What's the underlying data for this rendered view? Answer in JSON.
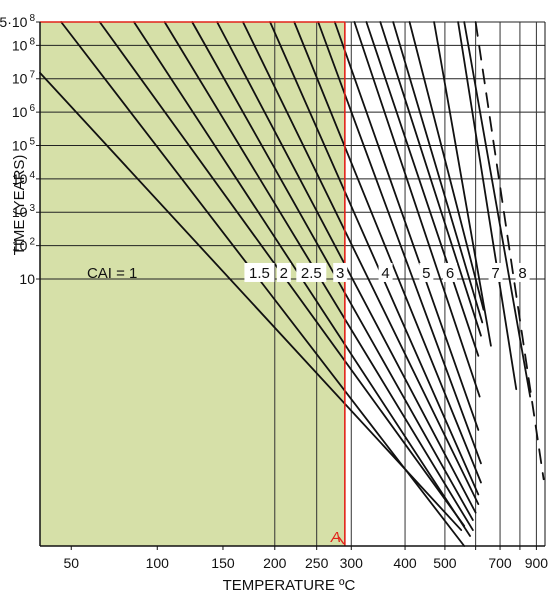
{
  "chart_data": {
    "type": "line",
    "xlabel": "TEMPERATURE ºC",
    "ylabel": "TIME (YEARS)",
    "x_scale": "reciprocal-kelvin",
    "y_scale": "log",
    "xlim": [
      35,
      960
    ],
    "ylim_years": [
      1e-07,
      500000000
    ],
    "x_ticks": [
      {
        "value": 50,
        "label": "50"
      },
      {
        "value": 100,
        "label": "100"
      },
      {
        "value": 150,
        "label": "150"
      },
      {
        "value": 200,
        "label": "200"
      },
      {
        "value": 250,
        "label": "250"
      },
      {
        "value": 300,
        "label": "300"
      },
      {
        "value": 400,
        "label": "400"
      },
      {
        "value": 500,
        "label": "500"
      },
      {
        "value": 600,
        "label": ""
      },
      {
        "value": 700,
        "label": "700"
      },
      {
        "value": 800,
        "label": ""
      },
      {
        "value": 900,
        "label": "900"
      }
    ],
    "y_ticks": [
      {
        "value": 10,
        "base": "10",
        "exp": ""
      },
      {
        "value": 100,
        "base": "10",
        "exp": "2"
      },
      {
        "value": 1000,
        "base": "10",
        "exp": "3"
      },
      {
        "value": 10000,
        "base": "10",
        "exp": "4"
      },
      {
        "value": 100000,
        "base": "10",
        "exp": "5"
      },
      {
        "value": 1000000,
        "base": "10",
        "exp": "6"
      },
      {
        "value": 10000000,
        "base": "10",
        "exp": "7"
      },
      {
        "value": 100000000,
        "base": "10",
        "exp": "8"
      },
      {
        "value": 500000000,
        "base": "5·10",
        "exp": "8"
      }
    ],
    "grid_temps_vertical": [
      200,
      250,
      300,
      400,
      500,
      600,
      700,
      800,
      900
    ],
    "series": [
      {
        "name": "1",
        "style": "solid",
        "points": [
          [
            35,
            15000000
          ],
          [
            550,
            3e-07
          ]
        ]
      },
      {
        "name": "1.5",
        "style": "solid",
        "points": [
          [
            45,
            500000000
          ],
          [
            560,
            1e-07
          ]
        ]
      },
      {
        "name": "2",
        "style": "solid",
        "points": [
          [
            65,
            500000000
          ],
          [
            560,
            4e-07
          ]
        ]
      },
      {
        "name": "2.5",
        "style": "solid",
        "points": [
          [
            85,
            500000000
          ],
          [
            580,
            2e-07
          ]
        ]
      },
      {
        "name": "",
        "style": "solid",
        "points": [
          [
            105,
            500000000
          ],
          [
            590,
            3e-07
          ]
        ]
      },
      {
        "name": "",
        "style": "solid",
        "points": [
          [
            125,
            500000000
          ],
          [
            590,
            6e-07
          ]
        ]
      },
      {
        "name": "",
        "style": "solid",
        "points": [
          [
            145,
            500000000
          ],
          [
            600,
            1e-06
          ]
        ]
      },
      {
        "name": "",
        "style": "solid",
        "points": [
          [
            168,
            500000000
          ],
          [
            610,
            1.8e-06
          ]
        ]
      },
      {
        "name": "",
        "style": "solid",
        "points": [
          [
            195,
            500000000
          ],
          [
            610,
            3.5e-06
          ]
        ]
      },
      {
        "name": "",
        "style": "solid",
        "points": [
          [
            222,
            500000000
          ],
          [
            620,
            8e-06
          ]
        ]
      },
      {
        "name": "",
        "style": "solid",
        "points": [
          [
            252,
            500000000
          ],
          [
            620,
            3e-05
          ]
        ]
      },
      {
        "name": "3",
        "style": "solid",
        "points": [
          [
            275,
            500000000
          ],
          [
            610,
            0.0003
          ]
        ]
      },
      {
        "name": "",
        "style": "solid",
        "points": [
          [
            305,
            500000000
          ],
          [
            615,
            0.003
          ]
        ]
      },
      {
        "name": "4",
        "style": "solid",
        "points": [
          [
            325,
            500000000
          ],
          [
            610,
            0.05
          ]
        ]
      },
      {
        "name": "",
        "style": "solid",
        "points": [
          [
            350,
            500000000
          ],
          [
            620,
            0.2
          ]
        ]
      },
      {
        "name": "5",
        "style": "solid",
        "points": [
          [
            375,
            500000000
          ],
          [
            625,
            0.5
          ]
        ]
      },
      {
        "name": "6",
        "style": "solid",
        "points": [
          [
            410,
            500000000
          ],
          [
            630,
            1.2
          ]
        ]
      },
      {
        "name": "7",
        "style": "solid",
        "points": [
          [
            470,
            500000000
          ],
          [
            660,
            0.1
          ]
        ]
      },
      {
        "name": "",
        "style": "solid",
        "points": [
          [
            540,
            500000000
          ],
          [
            780,
            0.005
          ]
        ]
      },
      {
        "name": "",
        "style": "solid",
        "points": [
          [
            560,
            500000000
          ],
          [
            860,
            0.003
          ]
        ]
      },
      {
        "name": "8",
        "style": "dashed",
        "points": [
          [
            600,
            500000000
          ],
          [
            950,
            1e-05
          ]
        ]
      }
    ],
    "labels": [
      {
        "text": "CAI = 1",
        "t": 72,
        "y": 10
      },
      {
        "text": "1.5",
        "t": 184,
        "y": 10
      },
      {
        "text": "2",
        "t": 210,
        "y": 10
      },
      {
        "text": "2.5",
        "t": 243,
        "y": 10
      },
      {
        "text": "3",
        "t": 283,
        "y": 10
      },
      {
        "text": "4",
        "t": 360,
        "y": 10
      },
      {
        "text": "5",
        "t": 450,
        "y": 10
      },
      {
        "text": "6",
        "t": 515,
        "y": 10
      },
      {
        "text": "7",
        "t": 680,
        "y": 10
      },
      {
        "text": "8",
        "t": 815,
        "y": 10
      }
    ],
    "shaded_region": {
      "x_max": 290,
      "y_max": 500000000,
      "color": "#d6e0a8"
    },
    "marker_line": {
      "label": "A",
      "x": 290,
      "y_max": 500000000,
      "color": "#e2231a"
    }
  }
}
